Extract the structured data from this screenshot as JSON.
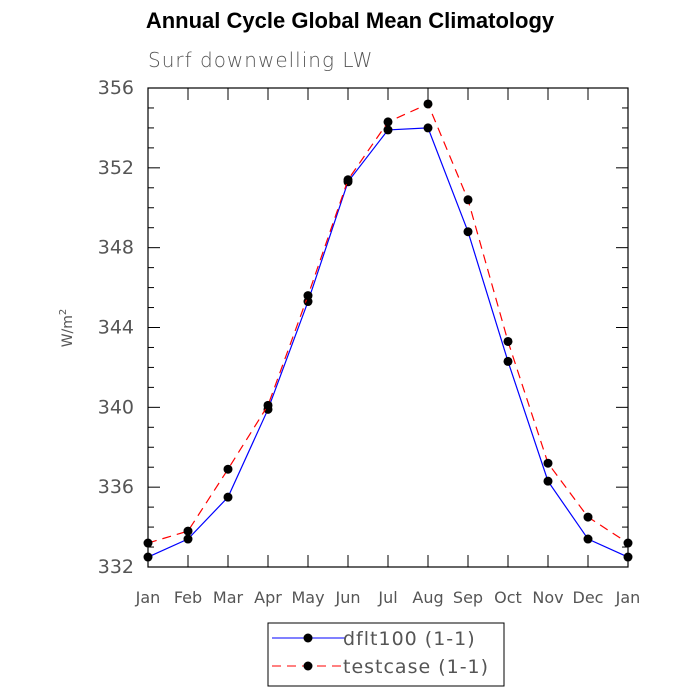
{
  "chart_data": {
    "type": "line",
    "title": "Annual Cycle Global Mean Climatology",
    "subtitle": "Surf downwelling LW",
    "xlabel": "",
    "ylabel": "W/m",
    "ylabel_superscript": "2",
    "categories": [
      "Jan",
      "Feb",
      "Mar",
      "Apr",
      "May",
      "Jun",
      "Jul",
      "Aug",
      "Sep",
      "Oct",
      "Nov",
      "Dec",
      "Jan"
    ],
    "ylim": [
      332,
      356
    ],
    "yticks": [
      332,
      336,
      340,
      344,
      348,
      352,
      356
    ],
    "ytick_labels": [
      "332",
      "336",
      "340",
      "344",
      "348",
      "352",
      "356"
    ],
    "legend_position": "bottom-center",
    "series": [
      {
        "name": "dflt100 (1-1)",
        "color": "#0000ff",
        "dash": "solid",
        "values": [
          332.5,
          333.4,
          335.5,
          339.9,
          345.3,
          351.3,
          353.9,
          354.0,
          348.8,
          342.3,
          336.3,
          333.4,
          332.5
        ]
      },
      {
        "name": "testcase (1-1)",
        "color": "#ff0000",
        "dash": "dashed",
        "values": [
          333.2,
          333.8,
          336.9,
          340.1,
          345.6,
          351.4,
          354.3,
          355.2,
          350.4,
          343.3,
          337.2,
          334.5,
          333.2
        ]
      }
    ]
  }
}
